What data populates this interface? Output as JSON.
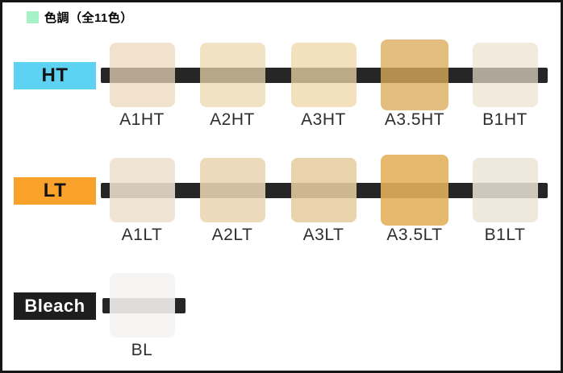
{
  "header": {
    "title": "色調（全11色）",
    "legend_icon_color": "#a6f2c6"
  },
  "bar_color": "#262626",
  "rows": [
    {
      "id": "HT",
      "label": "HT",
      "chip_bg": "#5dd2f3",
      "chip_text": "#141414",
      "swatches": [
        {
          "label": "A1HT",
          "color": "rgba(234,215,185,0.73)"
        },
        {
          "label": "A2HT",
          "color": "rgba(237,215,174,0.73)"
        },
        {
          "label": "A3HT",
          "color": "rgba(239,214,166,0.75)"
        },
        {
          "label": "A3.5HT",
          "color": "rgba(221,172,91,0.78)"
        },
        {
          "label": "B1HT",
          "color": "rgba(236,224,204,0.69)"
        }
      ]
    },
    {
      "id": "LT",
      "label": "LT",
      "chip_bg": "#f8a22c",
      "chip_text": "#141414",
      "swatches": [
        {
          "label": "A1LT",
          "color": "rgba(238,225,206,0.88)"
        },
        {
          "label": "A2LT",
          "color": "rgba(235,212,179,0.88)"
        },
        {
          "label": "A3LT",
          "color": "rgba(230,205,161,0.87)"
        },
        {
          "label": "A3.5LT",
          "color": "rgba(228,176,93,0.89)"
        },
        {
          "label": "B1LT",
          "color": "rgba(236,228,214,0.85)"
        }
      ]
    },
    {
      "id": "Bleach",
      "label": "Bleach",
      "chip_bg": "#1e1e1e",
      "chip_text": "#ffffff",
      "swatches": [
        {
          "label": "BL",
          "color": "rgba(245,244,242,0.89)"
        }
      ]
    }
  ]
}
